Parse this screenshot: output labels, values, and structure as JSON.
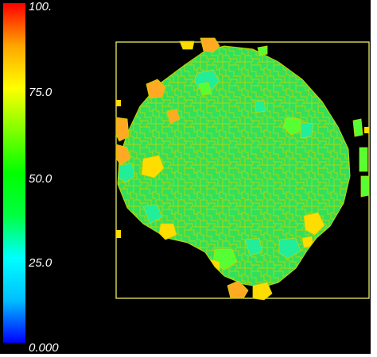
{
  "colorbar": {
    "labels": {
      "max": "100.",
      "q75": "75.0",
      "mid": "50.0",
      "q25": "25.0",
      "min": "0.000"
    },
    "gradient_stops": [
      "#0000ff",
      "#00bfff",
      "#00ffff",
      "#00ff40",
      "#00ff00",
      "#80ff00",
      "#ffff00",
      "#ffa500",
      "#ff0000"
    ],
    "range": [
      0,
      100
    ]
  },
  "field": {
    "background_color": "#000000",
    "boundary_color": "#ffff66",
    "grain_edge_color": "#c8d400",
    "dominant_color": "#33e05a",
    "accent_colors": [
      "#22ee99",
      "#55ff33",
      "#ffdd00",
      "#ffaa22",
      "#00ffaa"
    ]
  }
}
